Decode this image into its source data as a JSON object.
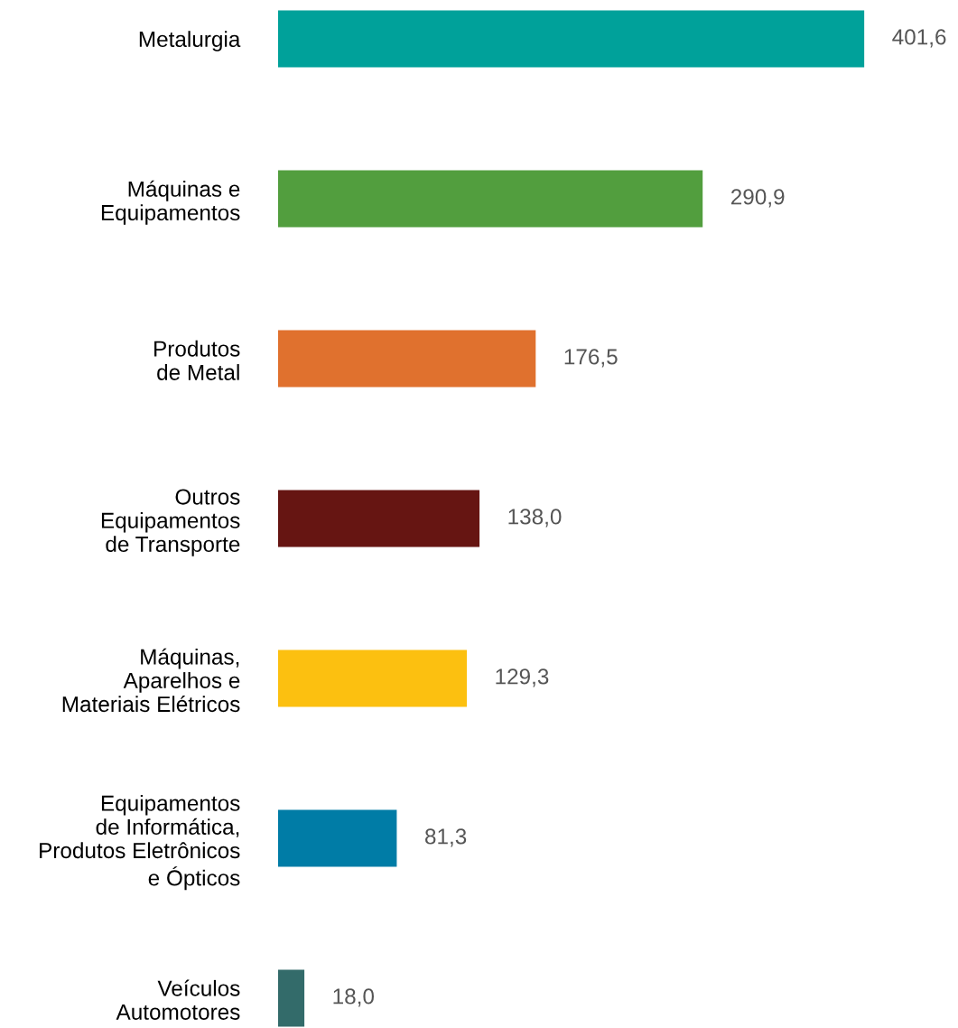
{
  "chart_data": {
    "type": "bar",
    "orientation": "horizontal",
    "categories": [
      "Metalurgia",
      "Máquinas e\nEquipamentos",
      "Produtos\nde Metal",
      "Outros\nEquipamentos\nde Transporte",
      "Máquinas,\nAparelhos e\nMateriais Elétricos",
      "Equipamentos\nde Informática,\nProdutos Eletrônicos\ne Ópticos",
      "Veículos\nAutomotores"
    ],
    "values": [
      401.6,
      290.9,
      176.5,
      138.0,
      129.3,
      81.3,
      18.0
    ],
    "colors": [
      "#00a19a",
      "#529e3e",
      "#e0712e",
      "#661512",
      "#fcc010",
      "#007ca6",
      "#336b6a"
    ],
    "value_labels": [
      "401,6",
      "290,9",
      "176,5",
      "138,0",
      "129,3",
      "81,3",
      "18,0"
    ],
    "grid": false,
    "legend": false
  }
}
